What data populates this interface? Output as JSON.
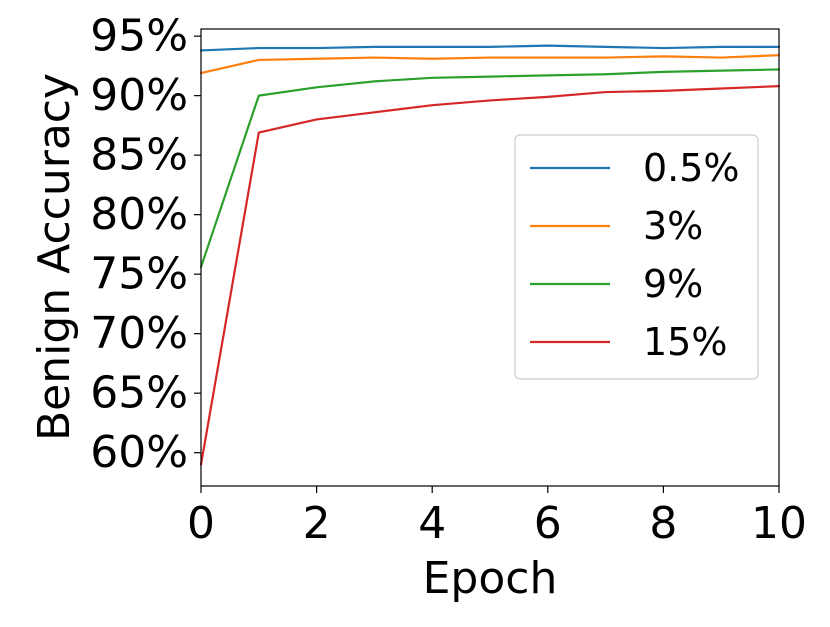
{
  "chart_data": {
    "type": "line",
    "title": "",
    "xlabel": "Epoch",
    "ylabel": "Benign Accuracy",
    "xlim": [
      0,
      10
    ],
    "ylim": [
      57.2,
      95.6
    ],
    "x_ticks": [
      0,
      2,
      4,
      6,
      8,
      10
    ],
    "y_ticks": [
      60,
      65,
      70,
      75,
      80,
      85,
      90,
      95
    ],
    "y_tick_format": "percent",
    "grid": false,
    "legend_position": "center-right",
    "x": [
      0,
      1,
      2,
      3,
      4,
      5,
      6,
      7,
      8,
      9,
      10
    ],
    "series": [
      {
        "name": "0.5%",
        "color": "#1f77b4",
        "values": [
          93.8,
          94.0,
          94.0,
          94.1,
          94.1,
          94.1,
          94.2,
          94.1,
          94.0,
          94.1,
          94.1
        ]
      },
      {
        "name": "3%",
        "color": "#ff7f0e",
        "values": [
          91.9,
          93.0,
          93.1,
          93.2,
          93.1,
          93.2,
          93.2,
          93.2,
          93.3,
          93.2,
          93.4
        ]
      },
      {
        "name": "9%",
        "color": "#2ca02c",
        "values": [
          75.6,
          90.0,
          90.7,
          91.2,
          91.5,
          91.6,
          91.7,
          91.8,
          92.0,
          92.1,
          92.2
        ]
      },
      {
        "name": "15%",
        "color": "#d62728",
        "values": [
          59.0,
          86.9,
          88.0,
          88.6,
          89.2,
          89.6,
          89.9,
          90.3,
          90.4,
          90.6,
          90.8
        ]
      }
    ]
  }
}
